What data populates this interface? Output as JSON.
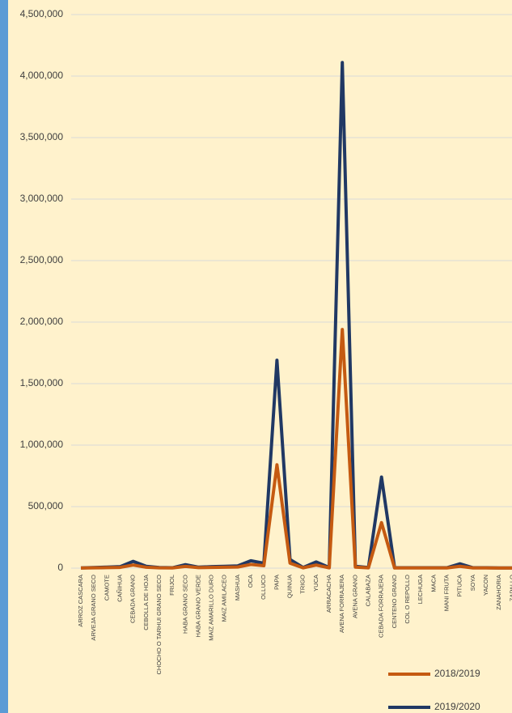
{
  "chart_data": {
    "type": "line",
    "categories": [
      "ARROZ CASCARA",
      "ARVEJA GRANO SECO",
      "CAMOTE",
      "CAÑIHUA",
      "CEBADA GRANO",
      "CEBOLLA DE HOJA",
      "CHOCHO O TARHUI GRANO SECO",
      "FRIJOL",
      "HABA GRANO SECO",
      "HABA GRANO VERDE",
      "MAIZ AMARILLO DURO",
      "MAIZ AMILACEO",
      "MASHUA",
      "OCA",
      "OLLUCO",
      "PAPA",
      "QUINUA",
      "TRIGO",
      "YUCA",
      "ARRACACHA",
      "AVENA FORRAJERA",
      "AVENA GRANO",
      "CALABAZA",
      "CEBADA FORRAJERA",
      "CENTENO GRANO",
      "COL O REPOLLO",
      "LECHUGA",
      "MACA",
      "MANI FRUTA",
      "PITUCA",
      "SOYA",
      "YACON",
      "ZANAHORIA",
      "ZAPALLO"
    ],
    "series": [
      {
        "name": "2018/2019",
        "color": "#c55a11",
        "values": [
          1000,
          2500,
          4000,
          6000,
          25000,
          7000,
          2500,
          1500,
          14000,
          4000,
          6000,
          7000,
          9000,
          30000,
          20000,
          840000,
          40000,
          2500,
          25000,
          2500,
          1940000,
          8000,
          2500,
          370000,
          1500,
          1500,
          1500,
          1500,
          1500,
          15000,
          1500,
          1500,
          1000,
          1000
        ]
      },
      {
        "name": "2019/2020",
        "color": "#203864",
        "values": [
          2000,
          5000,
          8000,
          12000,
          55000,
          15000,
          5000,
          3000,
          28000,
          8000,
          12000,
          15000,
          18000,
          60000,
          40000,
          1690000,
          70000,
          5000,
          50000,
          5000,
          4110000,
          15000,
          5000,
          740000,
          3000,
          3000,
          3000,
          3000,
          3000,
          35000,
          3000,
          3000,
          2000,
          2000
        ]
      }
    ],
    "ylim": [
      0,
      4500000
    ],
    "yticks": [
      0,
      {
        "value": 500000,
        "label": "500,000"
      },
      {
        "value": 1000000,
        "label": "1,000,000"
      },
      {
        "value": 1500000,
        "label": "1,500,000"
      },
      {
        "value": 2000000,
        "label": "2,000,000"
      },
      {
        "value": 2500000,
        "label": "2,500,000"
      },
      {
        "value": 3000000,
        "label": "3,000,000"
      },
      {
        "value": 3500000,
        "label": "3,500,000"
      },
      {
        "value": 4000000,
        "label": "4,000,000"
      },
      {
        "value": 4500000,
        "label": "4,500,000"
      }
    ],
    "grid": true
  }
}
